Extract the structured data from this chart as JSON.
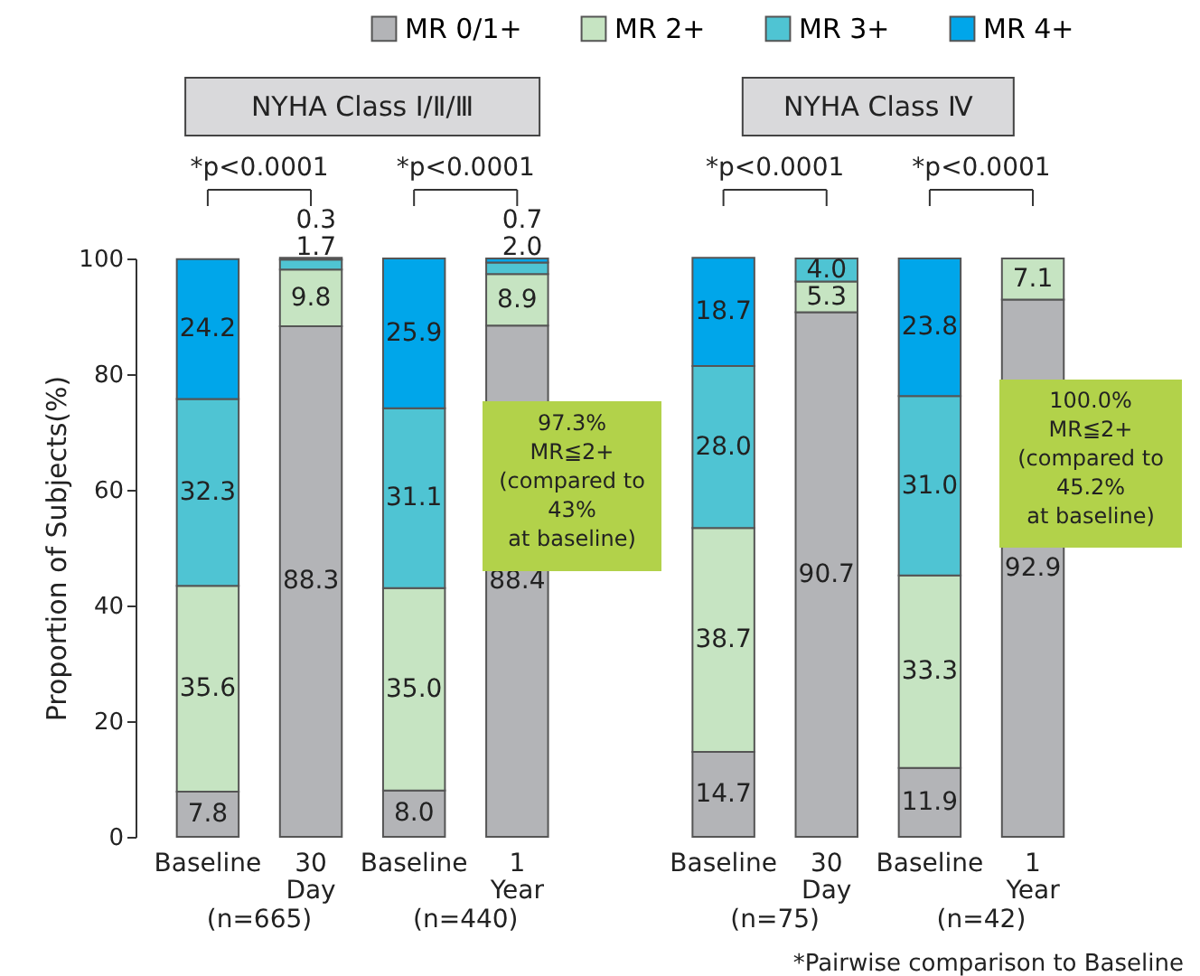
{
  "chart_data": {
    "type": "bar",
    "stacked": true,
    "ylabel": "Proportion of Subjects(%)",
    "categories": [
      "Baseline",
      "30 Day",
      "Baseline",
      "1 Year",
      "Baseline",
      "30 Day",
      "Baseline",
      "1 Year"
    ],
    "series": [
      {
        "name": "MR 0/1+",
        "color": "#b3b4b7",
        "values": [
          7.8,
          88.3,
          8.0,
          88.4,
          14.7,
          90.7,
          11.9,
          92.9
        ],
        "value_labels": [
          "7.8",
          "88.3",
          "8.0",
          "88.4",
          "14.7",
          "90.7",
          "11.9",
          "92.9"
        ]
      },
      {
        "name": "MR 2+",
        "color": "#c6e4c2",
        "values": [
          35.6,
          9.8,
          35.0,
          8.9,
          38.7,
          5.3,
          33.3,
          7.1
        ],
        "value_labels": [
          "35.6",
          "9.8",
          "35.0",
          "8.9",
          "38.7",
          "5.3",
          "33.3",
          "7.1"
        ]
      },
      {
        "name": "MR 3+",
        "color": "#4fc4d3",
        "values": [
          32.3,
          1.7,
          31.1,
          2.0,
          28.0,
          4.0,
          31.0,
          null
        ],
        "value_labels": [
          "32.3",
          "1.7",
          "31.1",
          "2.0",
          "28.0",
          "4.0",
          "31.0",
          null
        ]
      },
      {
        "name": "MR 4+",
        "color": "#00a6ea",
        "values": [
          24.2,
          0.3,
          25.9,
          0.7,
          18.7,
          null,
          23.8,
          null
        ],
        "value_labels": [
          "24.2",
          "0.3",
          "25.9",
          "0.7",
          "18.7",
          null,
          "23.8",
          null
        ]
      }
    ],
    "ylim": [
      0,
      100
    ],
    "yticks": [
      0,
      20,
      40,
      60,
      80,
      100
    ],
    "grid": false,
    "legend": "top",
    "annotations": [
      "NYHA Class Ⅰ/Ⅱ/Ⅲ",
      "NYHA Class Ⅳ",
      "*p<0.0001",
      "*p<0.0001",
      "*p<0.0001",
      "*p<0.0001",
      "97.3%\nMR≦2+\n(compared to\n43%\nat baseline)",
      "100.0%\nMR≦2+\n(compared to\n45.2%\nat baseline)",
      "(n=665)",
      "(n=440)",
      "(n=75)",
      "(n=42)",
      "*Pairwise comparison to Baseline"
    ]
  }
}
